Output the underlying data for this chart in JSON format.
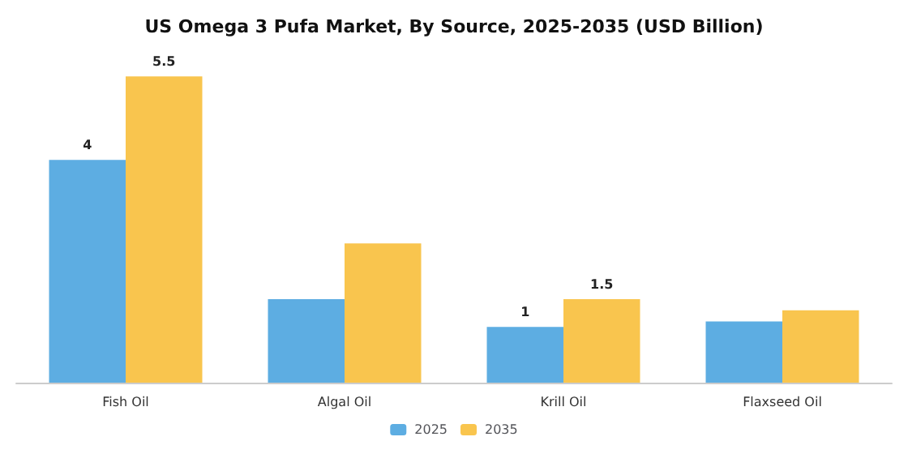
{
  "chart_data": {
    "type": "bar",
    "title": "US Omega 3 Pufa Market, By Source, 2025-2035 (USD Billion)",
    "categories": [
      "Fish Oil",
      "Algal Oil",
      "Krill Oil",
      "Flaxseed Oil"
    ],
    "series": [
      {
        "name": "2025",
        "color": "#5dade2",
        "values": [
          4,
          1.5,
          1,
          1.1
        ],
        "value_labels": [
          "4",
          null,
          "1",
          null
        ]
      },
      {
        "name": "2035",
        "color": "#f9c54e",
        "values": [
          5.5,
          2.5,
          1.5,
          1.3
        ],
        "value_labels": [
          "5.5",
          null,
          "1.5",
          null
        ]
      }
    ],
    "legend": "bottom",
    "grid": false
  }
}
